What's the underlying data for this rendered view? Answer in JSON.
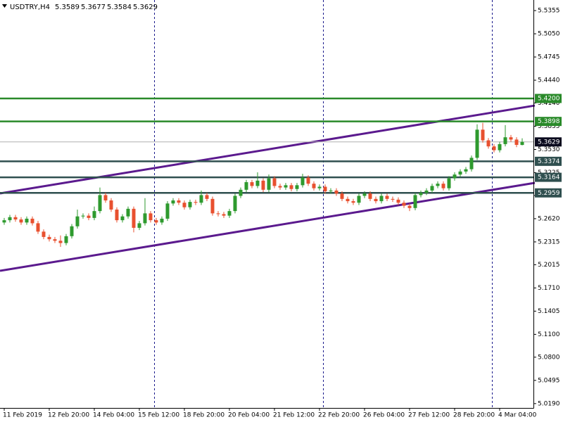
{
  "chart_data": {
    "type": "candlestick",
    "title": "USDTRY,H4",
    "categories": [
      "11 Feb 2019",
      null,
      null,
      null,
      null,
      null,
      null,
      null,
      "12 Feb 20:00",
      null,
      null,
      null,
      null,
      null,
      null,
      null,
      "14 Feb 04:00",
      null,
      null,
      null,
      null,
      null,
      null,
      null,
      "15 Feb 12:00",
      null,
      null,
      null,
      null,
      null,
      null,
      null,
      "18 Feb 20:00",
      null,
      null,
      null,
      null,
      null,
      null,
      null,
      "20 Feb 04:00",
      null,
      null,
      null,
      null,
      null,
      null,
      null,
      "21 Feb 12:00",
      null,
      null,
      null,
      null,
      null,
      null,
      null,
      "22 Feb 20:00",
      null,
      null,
      null,
      null,
      null,
      null,
      null,
      "26 Feb 04:00",
      null,
      null,
      null,
      null,
      null,
      null,
      null,
      "27 Feb 12:00",
      null,
      null,
      null,
      null,
      null,
      null,
      null,
      "28 Feb 20:00",
      null,
      null,
      null,
      null,
      null,
      null,
      null,
      "4 Mar 04:00",
      null,
      null,
      null,
      null
    ],
    "open": [
      5.257,
      5.26,
      5.264,
      5.261,
      5.257,
      5.262,
      5.256,
      5.245,
      5.238,
      5.235,
      5.233,
      5.23,
      5.239,
      5.252,
      5.265,
      5.266,
      5.263,
      5.272,
      5.293,
      5.286,
      5.274,
      5.26,
      5.265,
      5.275,
      5.25,
      5.256,
      5.269,
      5.26,
      5.257,
      5.262,
      5.282,
      5.286,
      5.283,
      5.277,
      5.284,
      5.283,
      5.293,
      5.288,
      5.269,
      5.268,
      5.266,
      5.272,
      5.292,
      5.3,
      5.31,
      5.305,
      5.312,
      5.3,
      5.315,
      5.305,
      5.303,
      5.306,
      5.301,
      5.306,
      5.316,
      5.308,
      5.302,
      5.304,
      5.298,
      5.299,
      5.295,
      5.288,
      5.285,
      5.283,
      5.292,
      5.295,
      5.288,
      5.285,
      5.292,
      5.288,
      5.287,
      5.283,
      5.279,
      5.276,
      5.293,
      5.296,
      5.299,
      5.305,
      5.308,
      5.302,
      5.315,
      5.32,
      5.324,
      5.327,
      5.342,
      5.379,
      5.365,
      5.357,
      5.352,
      5.36,
      5.369,
      5.366,
      5.3589
    ],
    "high": [
      5.263,
      5.267,
      5.267,
      5.264,
      5.265,
      5.265,
      5.259,
      5.248,
      5.241,
      5.238,
      5.24,
      5.242,
      5.255,
      5.274,
      5.269,
      5.269,
      5.278,
      5.303,
      5.296,
      5.289,
      5.277,
      5.268,
      5.278,
      5.278,
      5.259,
      5.289,
      5.272,
      5.263,
      5.265,
      5.285,
      5.289,
      5.289,
      5.286,
      5.287,
      5.287,
      5.299,
      5.296,
      5.291,
      5.272,
      5.271,
      5.275,
      5.295,
      5.303,
      5.313,
      5.313,
      5.323,
      5.315,
      5.32,
      5.318,
      5.308,
      5.309,
      5.309,
      5.309,
      5.321,
      5.319,
      5.311,
      5.307,
      5.307,
      5.302,
      5.302,
      5.298,
      5.291,
      5.288,
      5.295,
      5.298,
      5.298,
      5.291,
      5.295,
      5.295,
      5.291,
      5.29,
      5.286,
      5.282,
      5.296,
      5.299,
      5.302,
      5.308,
      5.311,
      5.311,
      5.318,
      5.323,
      5.327,
      5.33,
      5.345,
      5.386,
      5.388,
      5.368,
      5.36,
      5.363,
      5.385,
      5.372,
      5.369,
      5.3677
    ],
    "low": [
      5.254,
      5.257,
      5.258,
      5.254,
      5.254,
      5.253,
      5.242,
      5.235,
      5.232,
      5.23,
      5.225,
      5.227,
      5.236,
      5.249,
      5.262,
      5.26,
      5.26,
      5.269,
      5.283,
      5.271,
      5.257,
      5.257,
      5.262,
      5.244,
      5.247,
      5.253,
      5.257,
      5.254,
      5.254,
      5.259,
      5.279,
      5.28,
      5.274,
      5.274,
      5.28,
      5.28,
      5.285,
      5.266,
      5.265,
      5.263,
      5.263,
      5.269,
      5.289,
      5.297,
      5.302,
      5.302,
      5.297,
      5.297,
      5.302,
      5.3,
      5.3,
      5.298,
      5.298,
      5.303,
      5.305,
      5.299,
      5.299,
      5.295,
      5.295,
      5.292,
      5.285,
      5.282,
      5.28,
      5.28,
      5.289,
      5.285,
      5.282,
      5.282,
      5.285,
      5.284,
      5.28,
      5.276,
      5.272,
      5.273,
      5.29,
      5.293,
      5.296,
      5.302,
      5.299,
      5.299,
      5.312,
      5.317,
      5.321,
      5.324,
      5.339,
      5.362,
      5.354,
      5.349,
      5.349,
      5.357,
      5.363,
      5.356,
      5.3584
    ],
    "close": [
      5.26,
      5.264,
      5.261,
      5.257,
      5.262,
      5.256,
      5.245,
      5.238,
      5.235,
      5.233,
      5.23,
      5.239,
      5.252,
      5.265,
      5.266,
      5.263,
      5.272,
      5.293,
      5.286,
      5.274,
      5.26,
      5.265,
      5.275,
      5.25,
      5.256,
      5.269,
      5.26,
      5.257,
      5.262,
      5.282,
      5.286,
      5.283,
      5.277,
      5.284,
      5.283,
      5.293,
      5.288,
      5.269,
      5.268,
      5.266,
      5.272,
      5.292,
      5.3,
      5.31,
      5.305,
      5.312,
      5.3,
      5.315,
      5.305,
      5.303,
      5.306,
      5.301,
      5.306,
      5.316,
      5.308,
      5.302,
      5.304,
      5.298,
      5.299,
      5.295,
      5.288,
      5.285,
      5.283,
      5.292,
      5.295,
      5.288,
      5.285,
      5.292,
      5.288,
      5.287,
      5.283,
      5.279,
      5.276,
      5.293,
      5.296,
      5.299,
      5.305,
      5.308,
      5.302,
      5.315,
      5.32,
      5.324,
      5.327,
      5.342,
      5.379,
      5.365,
      5.357,
      5.352,
      5.36,
      5.369,
      5.366,
      5.359,
      5.3629
    ],
    "up_color": "#2e9a2e",
    "down_color": "#e8502f",
    "ylim": [
      5.0133,
      5.5494
    ],
    "yticks": [
      5.5355,
      {
        "value": 5.505,
        "label": "5.5050"
      },
      5.4745,
      {
        "value": 5.444,
        "label": "5.4440"
      },
      {
        "value": 5.414,
        "label": "5.4140"
      },
      5.3835,
      {
        "value": 5.353,
        "label": "5.3530"
      },
      5.3225,
      5.2925,
      {
        "value": 5.262,
        "label": "5.2620"
      },
      5.2315,
      5.2015,
      {
        "value": 5.171,
        "label": "5.1710"
      },
      5.1405,
      {
        "value": 5.11,
        "label": "5.1100"
      },
      {
        "value": 5.08,
        "label": "5.0800"
      },
      5.0495,
      {
        "value": 5.019,
        "label": "5.0190"
      }
    ],
    "levels": [
      {
        "value": 5.42,
        "label": "5.4200",
        "color": "#2a8a2a"
      },
      {
        "value": 5.3898,
        "label": "5.3898",
        "color": "#2a8a2a"
      },
      {
        "value": 5.3374,
        "label": "5.3374",
        "color": "#2f4f4f"
      },
      {
        "value": 5.3164,
        "label": "5.3164",
        "color": "#2f4f4f"
      },
      {
        "value": 5.2959,
        "label": "5.2959",
        "color": "#2f4f4f"
      }
    ],
    "trendlines": [
      {
        "start": {
          "x": -0.75,
          "y": 5.2952
        },
        "end": {
          "x": 94.25,
          "y": 5.4107
        },
        "color": "#5b1a8e"
      },
      {
        "start": {
          "x": -0.75,
          "y": 5.1935
        },
        "end": {
          "x": 94.25,
          "y": 5.3091
        },
        "color": "#5b1a8e"
      }
    ]
  }
}
